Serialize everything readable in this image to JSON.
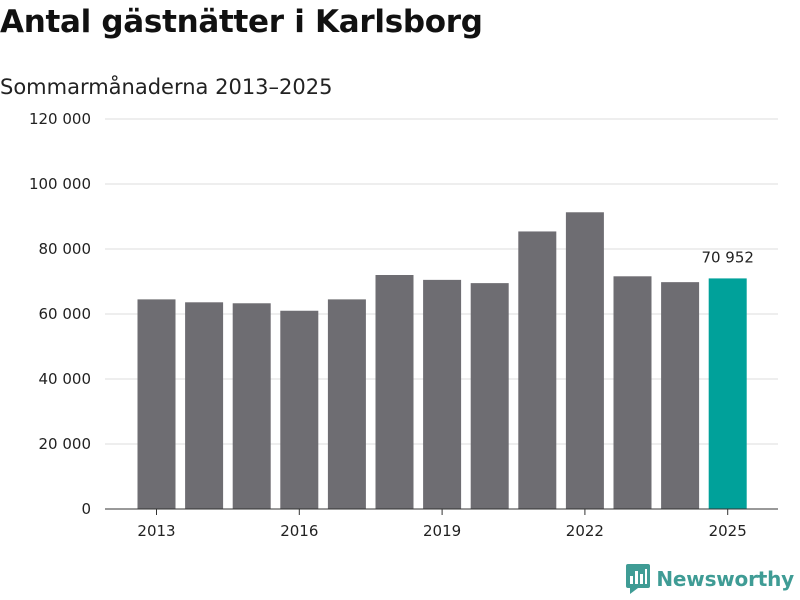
{
  "chart_data": {
    "type": "bar",
    "title": "Antal gästnätter i Karlsborg",
    "subtitle": "Sommarmånaderna 2013–2025",
    "categories": [
      "2013",
      "2014",
      "2015",
      "2016",
      "2017",
      "2018",
      "2019",
      "2020",
      "2021",
      "2022",
      "2023",
      "2024",
      "2025"
    ],
    "x_tick_labels": [
      "2013",
      "2016",
      "2019",
      "2022",
      "2025"
    ],
    "values": [
      64500,
      63600,
      63300,
      61000,
      64500,
      72000,
      70500,
      69500,
      85400,
      91300,
      71600,
      69800,
      70952
    ],
    "highlight_index": 12,
    "highlight_label": "70 952",
    "ylim": [
      0,
      120000
    ],
    "y_ticks": [
      0,
      20000,
      40000,
      60000,
      80000,
      100000,
      120000
    ],
    "y_tick_labels": [
      "0",
      "20 000",
      "40 000",
      "60 000",
      "80 000",
      "100 000",
      "120 000"
    ],
    "xlabel": "",
    "ylabel": "",
    "grid": true,
    "legend": "none",
    "colors": {
      "bar": "#6e6d72",
      "highlight": "#00a19a",
      "grid": "#dddddd",
      "axis": "#333333"
    }
  },
  "brand": {
    "name": "Newsworthy",
    "icon": "newsworthy-logo-icon",
    "color": "#3f9c95"
  }
}
